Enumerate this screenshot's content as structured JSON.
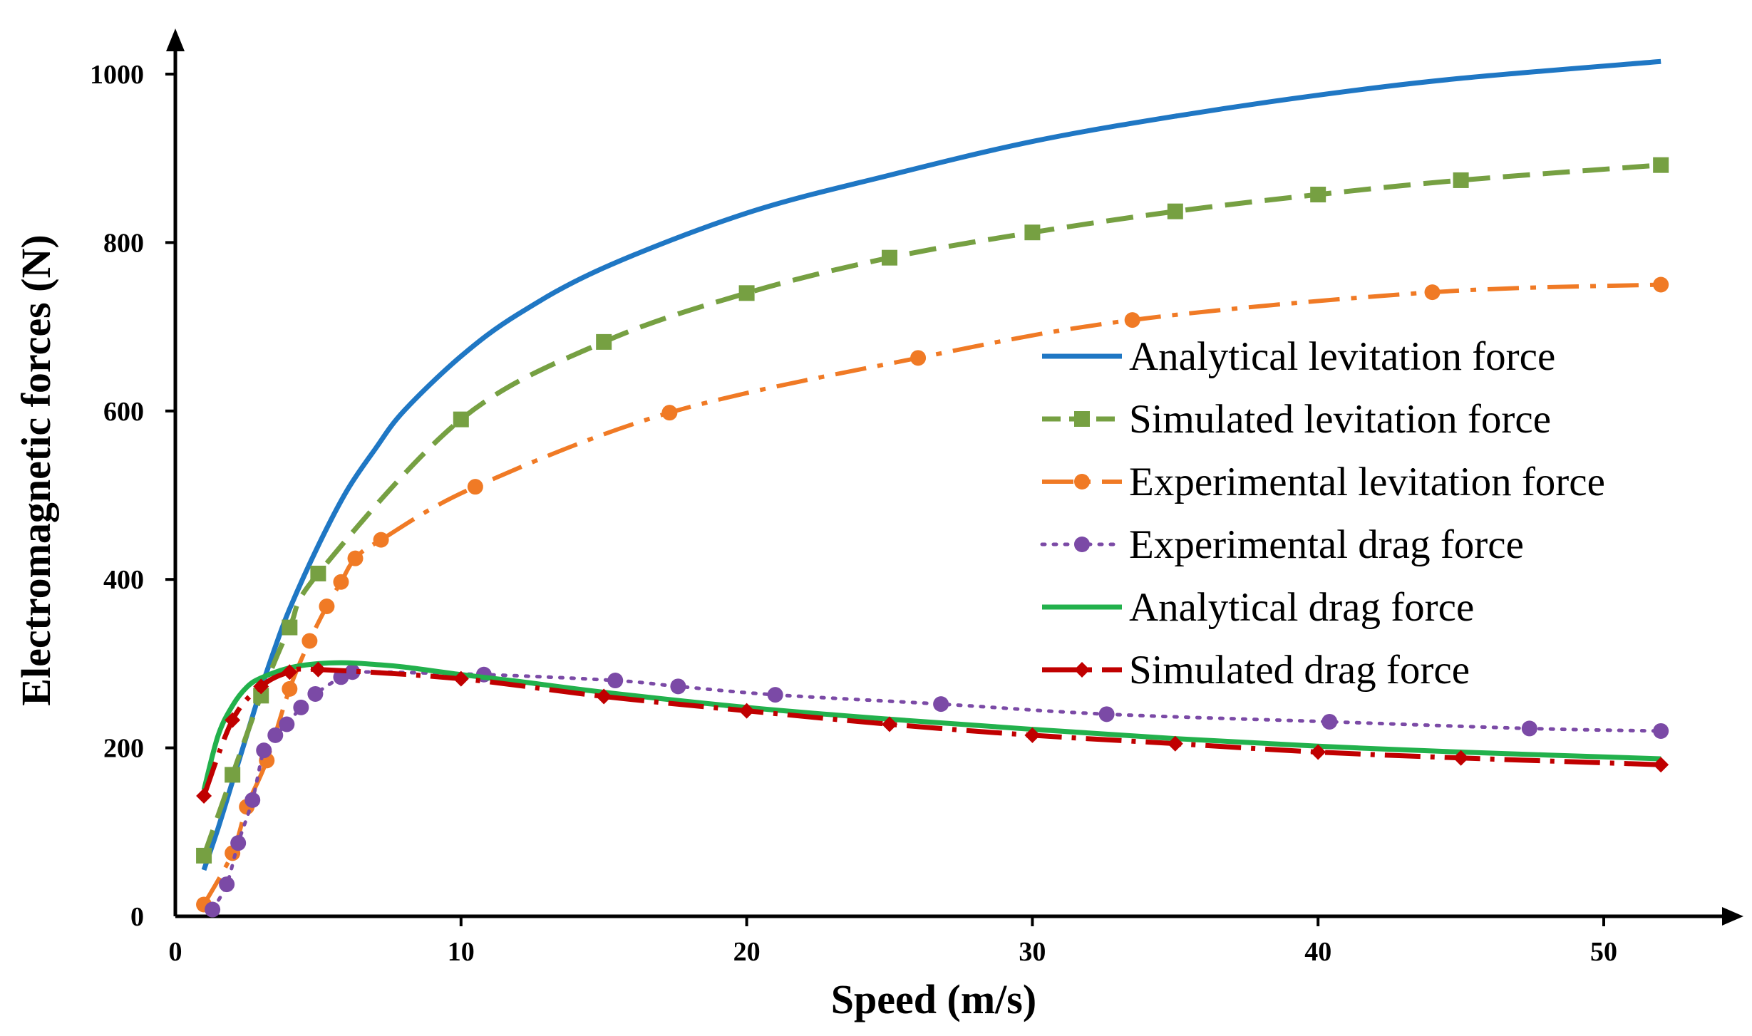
{
  "chart_data": {
    "type": "line",
    "title": "",
    "xlabel": "Speed (m/s)",
    "ylabel": "Electromagnetic forces (N)",
    "xlim": [
      0,
      54
    ],
    "ylim": [
      0,
      1050
    ],
    "xticks": [
      0,
      10,
      20,
      30,
      40,
      50
    ],
    "yticks": [
      0,
      200,
      400,
      600,
      800,
      1000
    ],
    "xtick_labels": [
      "0",
      "10",
      "20",
      "30",
      "40",
      "50"
    ],
    "ytick_labels": [
      "0",
      "200",
      "400",
      "600",
      "800",
      "1000"
    ],
    "grid": false,
    "legend_position": "right-middle",
    "series": [
      {
        "name": "Analytical levitation force",
        "color": "#1f77c4",
        "style": "solid",
        "marker": "none",
        "x": [
          1,
          1.5,
          2,
          2.5,
          3,
          3.5,
          4,
          5,
          6,
          7,
          8,
          10,
          12,
          15,
          20,
          25,
          30,
          35,
          40,
          45,
          52
        ],
        "y": [
          55,
          105,
          160,
          215,
          270,
          320,
          365,
          440,
          505,
          555,
          600,
          665,
          715,
          770,
          835,
          880,
          920,
          950,
          975,
          995,
          1015
        ]
      },
      {
        "name": "Simulated levitation force",
        "color": "#76a042",
        "style": "dashed",
        "marker": "square",
        "x": [
          1,
          2,
          3,
          4,
          5,
          10,
          15,
          20,
          25,
          30,
          35,
          40,
          45,
          52
        ],
        "y": [
          72,
          168,
          262,
          343,
          407,
          590,
          682,
          740,
          782,
          812,
          837,
          857,
          874,
          892
        ]
      },
      {
        "name": "Experimental levitation force",
        "color": "#f07a25",
        "style": "dashdot",
        "marker": "circle",
        "x": [
          1,
          2,
          2.5,
          3.2,
          4,
          4.7,
          5.3,
          5.8,
          6.3,
          7.2,
          10.5,
          17.3,
          26,
          33.5,
          44,
          52
        ],
        "y": [
          14,
          75,
          130,
          185,
          270,
          327,
          368,
          397,
          425,
          447,
          510,
          598,
          663,
          708,
          741,
          750
        ]
      },
      {
        "name": "Experimental drag force",
        "color": "#7b4aa6",
        "style": "dotted",
        "marker": "circle",
        "x": [
          1.3,
          1.8,
          2.2,
          2.7,
          3.1,
          3.5,
          3.9,
          4.4,
          4.9,
          5.8,
          6.2,
          10.8,
          15.4,
          17.6,
          21,
          26.8,
          32.6,
          40.4,
          47.4,
          52
        ],
        "y": [
          8,
          38,
          87,
          138,
          197,
          215,
          228,
          248,
          264,
          284,
          290,
          287,
          280,
          273,
          263,
          252,
          240,
          231,
          223,
          220
        ]
      },
      {
        "name": "Analytical drag force",
        "color": "#22b14c",
        "style": "solid",
        "marker": "none",
        "x": [
          1,
          1.5,
          2,
          2.5,
          3,
          4,
          5,
          6,
          7,
          8,
          10,
          12,
          15,
          20,
          25,
          30,
          35,
          40,
          45,
          52
        ],
        "y": [
          150,
          215,
          250,
          272,
          283,
          295,
          300,
          301,
          299,
          296,
          287,
          279,
          266,
          248,
          234,
          222,
          211,
          202,
          195,
          187
        ]
      },
      {
        "name": "Simulated drag force",
        "color": "#c00000",
        "style": "longdash",
        "marker": "diamond",
        "x": [
          1,
          2,
          3,
          4,
          5,
          10,
          15,
          20,
          25,
          30,
          35,
          40,
          45,
          52
        ],
        "y": [
          143,
          233,
          273,
          290,
          293,
          282,
          261,
          244,
          228,
          215,
          205,
          195,
          188,
          180
        ]
      }
    ]
  }
}
